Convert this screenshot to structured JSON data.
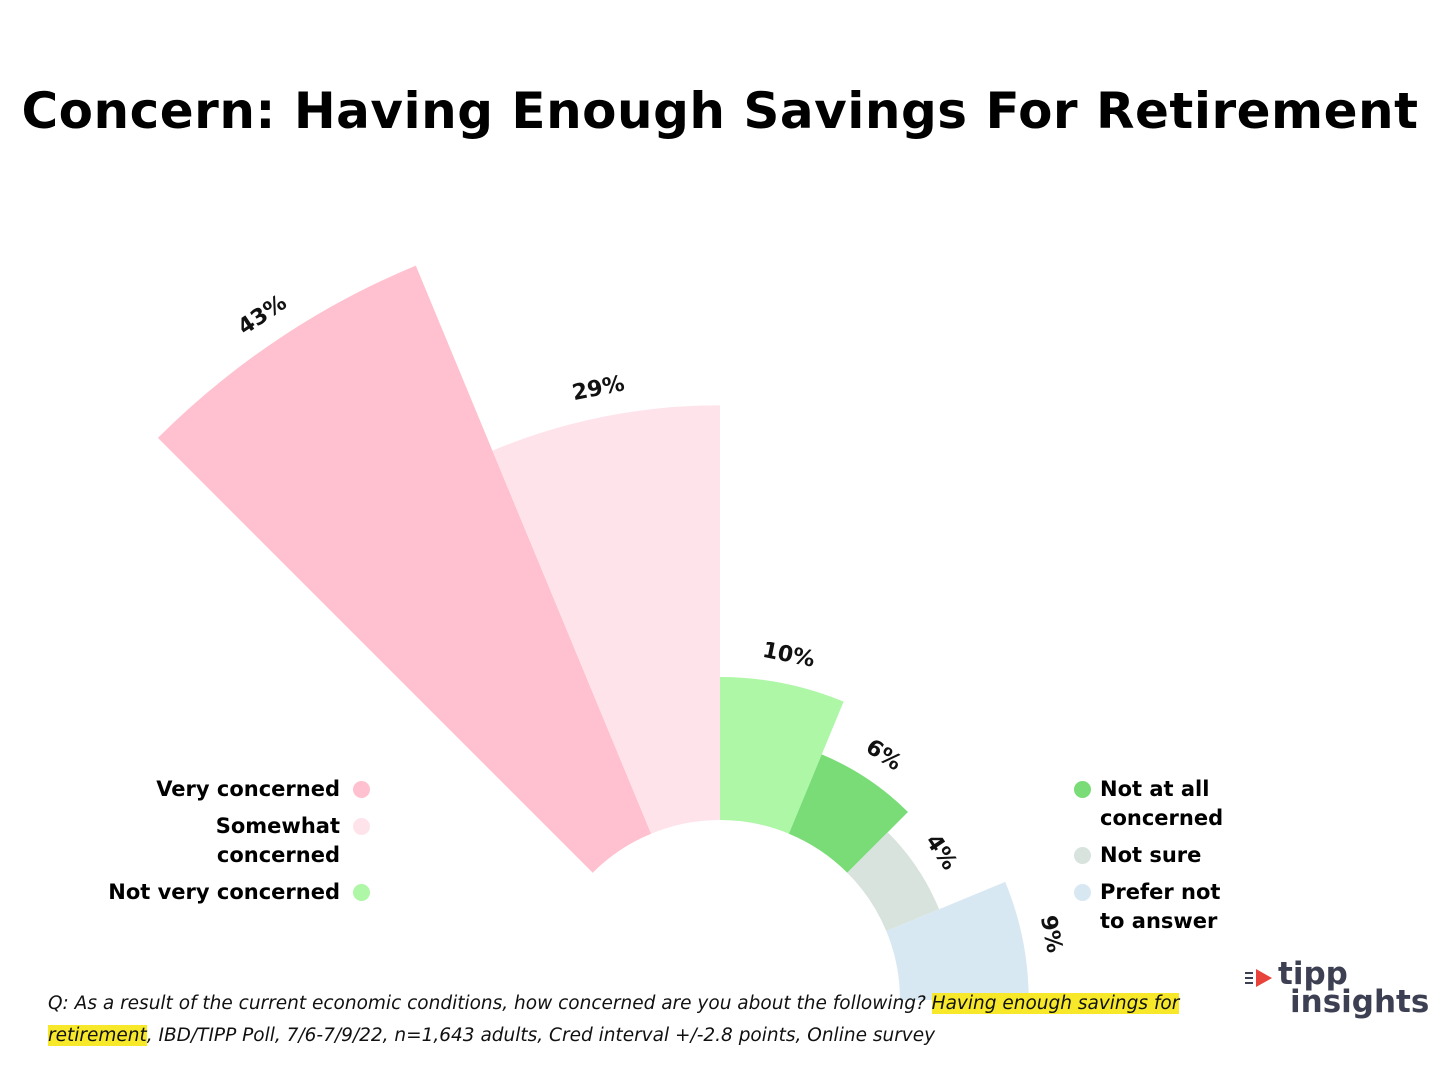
{
  "chart_data": {
    "type": "polar-bar",
    "title": "Concern: Having Enough Savings For Retirement",
    "categories": [
      "Very concerned",
      "Somewhat concerned",
      "Not very concerned",
      "Not at all concerned",
      "Not sure",
      "Prefer not to answer"
    ],
    "values": [
      43,
      29,
      10,
      6,
      4,
      9
    ],
    "value_labels": [
      "43%",
      "29%",
      "10%",
      "6%",
      "4%",
      "9%"
    ],
    "colors": [
      "#ffc0cf",
      "#ffe3ea",
      "#adf7a7",
      "#79dc77",
      "#d8e3dd",
      "#d8e8f3"
    ],
    "legend_left": [
      "Very concerned",
      "Somewhat concerned",
      "Not very concerned"
    ],
    "legend_right": [
      "Not at all concerned",
      "Not sure",
      "Prefer not to answer"
    ]
  },
  "footnote": {
    "prefix": "Q: As a result of the current economic conditions, how concerned are you about the following?  ",
    "highlight": "Having enough savings for retirement",
    "suffix": ", IBD/TIPP Poll, 7/6-7/9/22, n=1,643 adults, Cred interval +/-2.8 points, Online survey"
  },
  "logo": {
    "line1": "tipp",
    "line2": "insights",
    "accent_color": "#e8433a",
    "text_color": "#3d3f52"
  }
}
